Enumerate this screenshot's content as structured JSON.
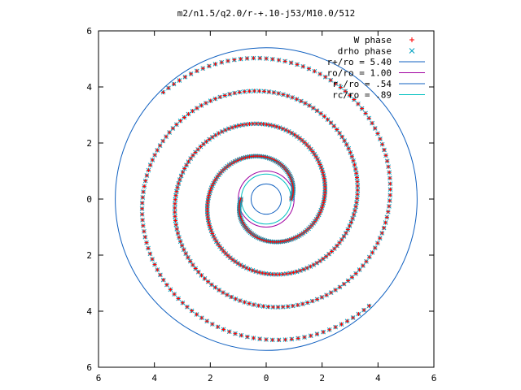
{
  "chart_data": {
    "type": "scatter",
    "title": "m2/n1.5/q2.0/r-+.10-j53/M10.0/512",
    "xlim": [
      -6,
      6
    ],
    "ylim": [
      -6,
      6
    ],
    "xticks": [
      -6,
      -4,
      -2,
      0,
      2,
      4,
      6
    ],
    "yticks": [
      -6,
      -4,
      -2,
      0,
      2,
      4,
      6
    ],
    "xtick_labels": [
      "6",
      "4",
      "2",
      "0",
      "2",
      "4",
      "6"
    ],
    "ytick_labels": [
      "6",
      "4",
      "2",
      "0",
      "2",
      "4",
      "6"
    ],
    "legend_position": "top-right",
    "grid": false,
    "spiral": {
      "arms": 2,
      "r_start": 0.9,
      "r_end": 5.3,
      "radial_step_per_turn": 2.35,
      "angle_offset_deg": 0
    },
    "series": [
      {
        "name": "W phase",
        "marker": "+",
        "color": "#ff0000"
      },
      {
        "name": "drho phase",
        "marker": "x",
        "color": "#00a0c0"
      }
    ],
    "circles": [
      {
        "name": "r+/ro = 5.40",
        "r": 5.4,
        "color": "#1060c0"
      },
      {
        "name": "ro/ro = 1.00",
        "r": 1.0,
        "color": "#a000a0"
      },
      {
        "name": "r-/ro = .54",
        "r": 0.54,
        "color": "#1060c0"
      },
      {
        "name": "rc/ro = .89",
        "r": 0.89,
        "color": "#00c0c0"
      }
    ]
  }
}
